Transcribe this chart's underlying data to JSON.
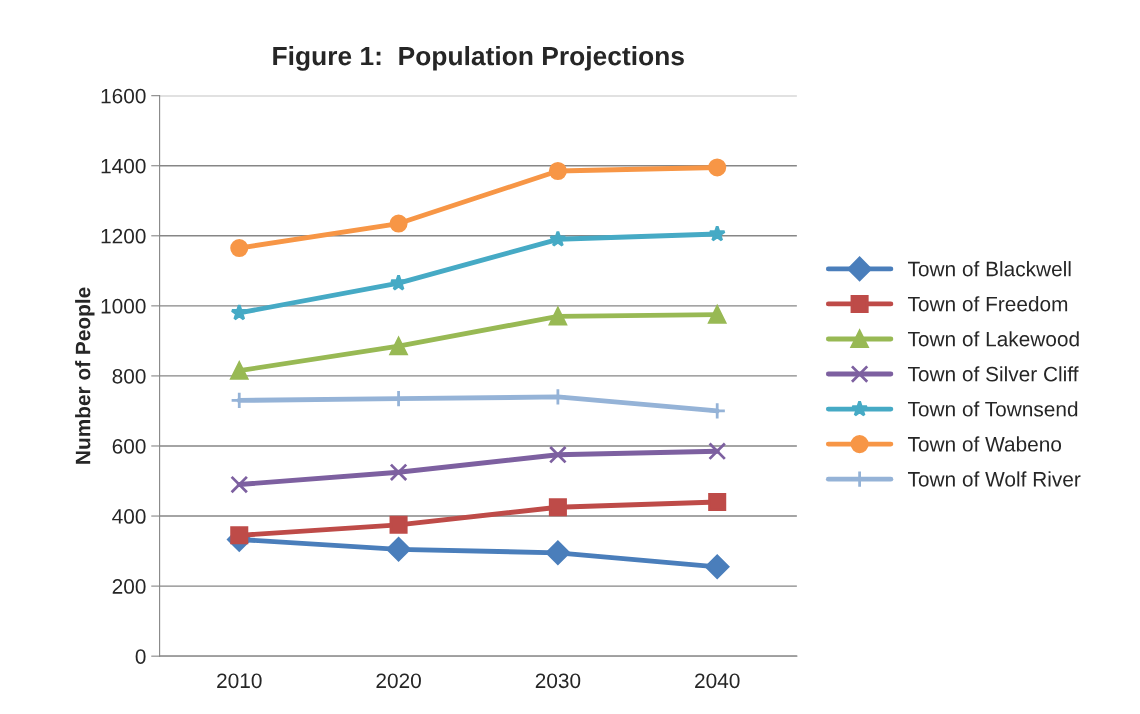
{
  "chart_data": {
    "type": "line",
    "title": "Figure 1:  Population Projections",
    "ylabel": "Number of People",
    "categories": [
      "2010",
      "2020",
      "2030",
      "2040"
    ],
    "series": [
      {
        "name": "Town of Blackwell",
        "color": "#4a7ebb",
        "marker": "diamond",
        "values": [
          333,
          305,
          295,
          255
        ]
      },
      {
        "name": "Town of Freedom",
        "color": "#be4b48",
        "marker": "square",
        "values": [
          345,
          375,
          425,
          440
        ]
      },
      {
        "name": "Town of Lakewood",
        "color": "#98b954",
        "marker": "triangle",
        "values": [
          815,
          885,
          970,
          975
        ]
      },
      {
        "name": "Town of Silver Cliff",
        "color": "#7d60a0",
        "marker": "cross",
        "values": [
          490,
          525,
          575,
          585
        ]
      },
      {
        "name": "Town of Townsend",
        "color": "#46aac5",
        "marker": "star",
        "values": [
          980,
          1065,
          1190,
          1205
        ]
      },
      {
        "name": "Town of Wabeno",
        "color": "#f79646",
        "marker": "circle",
        "values": [
          1165,
          1235,
          1385,
          1395
        ]
      },
      {
        "name": "Town of Wolf River",
        "color": "#95b3d7",
        "marker": "plus",
        "values": [
          730,
          735,
          740,
          700
        ]
      }
    ],
    "ylim": [
      0,
      1600
    ],
    "yticks": [
      0,
      200,
      400,
      600,
      800,
      1000,
      1200,
      1400,
      1600
    ],
    "grid": "y",
    "legend": "right"
  }
}
